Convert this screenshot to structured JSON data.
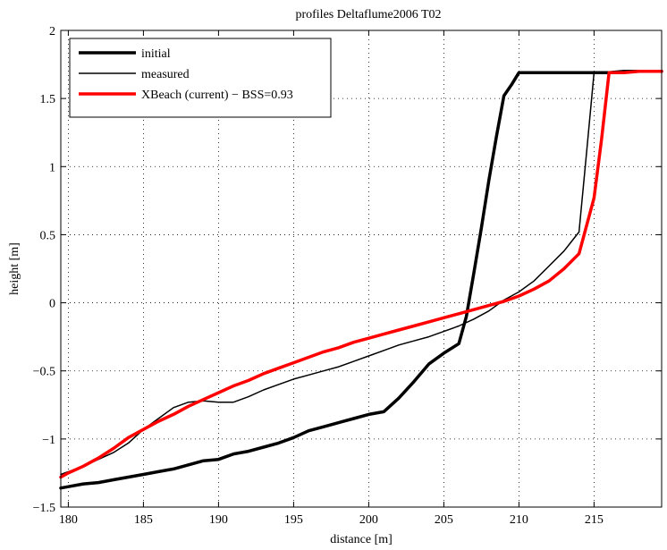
{
  "chart_data": {
    "type": "line",
    "title": "profiles Deltaflume2006 T02",
    "xlabel": "distance [m]",
    "ylabel": "height [m]",
    "xlim": [
      179.5,
      219.5
    ],
    "ylim": [
      -1.5,
      2
    ],
    "xticks": [
      180,
      185,
      190,
      195,
      200,
      205,
      210,
      215
    ],
    "yticks": [
      -1.5,
      -1,
      -0.5,
      0,
      0.5,
      1,
      1.5,
      2
    ],
    "xtick_labels": [
      "180",
      "185",
      "190",
      "195",
      "200",
      "205",
      "210",
      "215"
    ],
    "ytick_labels": [
      "−1.5",
      "−1",
      "−0.5",
      "0",
      "0.5",
      "1",
      "1.5",
      "2"
    ],
    "grid": true,
    "legend_position": "top-left",
    "series": [
      {
        "name": "initial",
        "color": "#000000",
        "style": "thick",
        "x": [
          179.5,
          180,
          181,
          182,
          183,
          184,
          185,
          186,
          187,
          188,
          189,
          190,
          191,
          192,
          193,
          194,
          195,
          196,
          197,
          198,
          199,
          200,
          201,
          202,
          203,
          204,
          205,
          206,
          206.5,
          207,
          207.5,
          208,
          208.5,
          209,
          209.5,
          210,
          211,
          212,
          213,
          214,
          215,
          216,
          217,
          218,
          219.5
        ],
        "y": [
          -1.36,
          -1.35,
          -1.33,
          -1.32,
          -1.3,
          -1.28,
          -1.26,
          -1.24,
          -1.22,
          -1.19,
          -1.16,
          -1.15,
          -1.11,
          -1.09,
          -1.06,
          -1.03,
          -0.99,
          -0.94,
          -0.91,
          -0.88,
          -0.85,
          -0.82,
          -0.8,
          -0.7,
          -0.58,
          -0.45,
          -0.37,
          -0.3,
          -0.1,
          0.22,
          0.55,
          0.9,
          1.22,
          1.52,
          1.6,
          1.69,
          1.69,
          1.69,
          1.69,
          1.69,
          1.69,
          1.69,
          1.7,
          1.7,
          1.7
        ]
      },
      {
        "name": "measured",
        "color": "#000000",
        "style": "thin",
        "x": [
          179.5,
          180,
          181,
          182,
          183,
          184,
          185,
          186,
          187,
          188,
          189,
          190,
          191,
          192,
          193,
          194,
          195,
          196,
          197,
          198,
          199,
          200,
          201,
          202,
          203,
          204,
          205,
          206,
          207,
          208,
          209,
          210,
          211,
          212,
          213,
          214,
          214.5,
          215,
          216,
          217,
          218,
          219.5
        ],
        "y": [
          -1.26,
          -1.24,
          -1.2,
          -1.15,
          -1.1,
          -1.03,
          -0.93,
          -0.85,
          -0.77,
          -0.73,
          -0.72,
          -0.73,
          -0.73,
          -0.69,
          -0.64,
          -0.6,
          -0.56,
          -0.53,
          -0.5,
          -0.47,
          -0.43,
          -0.39,
          -0.35,
          -0.31,
          -0.28,
          -0.25,
          -0.21,
          -0.17,
          -0.12,
          -0.06,
          0.02,
          0.08,
          0.16,
          0.27,
          0.38,
          0.52,
          1.1,
          1.69,
          1.69,
          1.7,
          1.7,
          1.7
        ]
      },
      {
        "name": "XBeach (current) − BSS=0.93",
        "color": "#ff0000",
        "style": "thick",
        "x": [
          179.5,
          180,
          181,
          182,
          183,
          184,
          185,
          186,
          187,
          188,
          189,
          190,
          191,
          192,
          193,
          194,
          195,
          196,
          197,
          198,
          199,
          200,
          201,
          202,
          203,
          204,
          205,
          206,
          207,
          208,
          209,
          210,
          211,
          212,
          213,
          214,
          215,
          215.5,
          216,
          217,
          218,
          219.5
        ],
        "y": [
          -1.28,
          -1.25,
          -1.2,
          -1.14,
          -1.07,
          -0.99,
          -0.93,
          -0.87,
          -0.82,
          -0.76,
          -0.71,
          -0.66,
          -0.61,
          -0.57,
          -0.52,
          -0.48,
          -0.44,
          -0.4,
          -0.36,
          -0.33,
          -0.29,
          -0.26,
          -0.23,
          -0.2,
          -0.17,
          -0.14,
          -0.11,
          -0.08,
          -0.05,
          -0.02,
          0.01,
          0.05,
          0.1,
          0.16,
          0.25,
          0.36,
          0.77,
          1.2,
          1.69,
          1.69,
          1.7,
          1.7
        ]
      }
    ]
  }
}
